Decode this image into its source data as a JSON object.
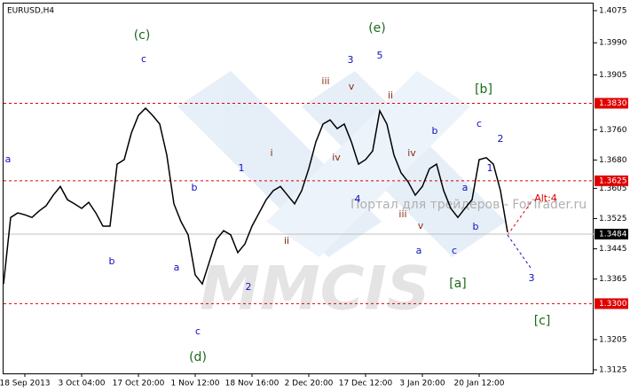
{
  "chart_data": {
    "type": "line",
    "title": "EURUSD,H4",
    "color": "#000000",
    "categories": [
      null,
      null,
      null,
      "18 Sep 2013",
      null,
      null,
      null,
      null,
      null,
      null,
      null,
      "3 Oct 04:00",
      null,
      null,
      null,
      null,
      null,
      null,
      null,
      "17 Oct 20:00",
      null,
      null,
      null,
      null,
      null,
      null,
      null,
      "1 Nov 12:00",
      null,
      null,
      null,
      null,
      null,
      null,
      null,
      "18 Nov 16:00",
      null,
      null,
      null,
      null,
      null,
      null,
      null,
      "2 Dec 20:00",
      null,
      null,
      null,
      null,
      null,
      null,
      null,
      "17 Dec 12:00",
      null,
      null,
      null,
      null,
      null,
      null,
      null,
      "3 Jan 20:00",
      null,
      null,
      null,
      null,
      null,
      null,
      null,
      "20 Jan 12:00",
      null,
      null,
      null,
      null
    ],
    "values": [
      1.3352,
      1.3528,
      1.354,
      1.3535,
      1.3528,
      1.3545,
      1.3559,
      1.3587,
      1.361,
      1.3575,
      1.3564,
      1.3552,
      1.3568,
      1.354,
      1.3505,
      1.3505,
      1.3669,
      1.3681,
      1.3751,
      1.3798,
      1.3817,
      1.3798,
      1.3775,
      1.3693,
      1.3564,
      1.3517,
      1.3482,
      1.3376,
      1.3352,
      1.3411,
      1.347,
      1.3493,
      1.3482,
      1.3435,
      1.3458,
      1.3505,
      1.354,
      1.3575,
      1.3599,
      1.361,
      1.3587,
      1.3564,
      1.3599,
      1.3657,
      1.3728,
      1.3775,
      1.3786,
      1.3763,
      1.3775,
      1.3728,
      1.3669,
      1.3681,
      1.3704,
      1.381,
      1.3775,
      1.3693,
      1.3646,
      1.3622,
      1.3587,
      1.361,
      1.3657,
      1.3669,
      1.3599,
      1.3552,
      1.3528,
      1.3552,
      1.3575,
      1.3681,
      1.3686,
      1.3669,
      1.3599,
      1.3489
    ],
    "ylim": [
      1.3125,
      1.4075
    ],
    "yticks": [
      1.4075,
      {
        "value": 1.399,
        "label": "1.3990"
      },
      1.3905,
      {
        "value": 1.376,
        "label": "1.3760"
      },
      {
        "value": 1.368,
        "label": "1.3680"
      },
      1.3605,
      1.3525,
      1.3445,
      1.3365,
      1.3205,
      1.3125
    ],
    "hlines": [
      {
        "value": 1.383,
        "label": "1.3830",
        "color": "#e00000"
      },
      {
        "value": 1.3625,
        "label": "1.3625",
        "color": "#e00000"
      },
      {
        "value": 1.33,
        "label": "1.3300",
        "color": "#e00000"
      },
      {
        "value": 1.3484,
        "label": "1.3484",
        "color": "#c0c0c0"
      }
    ],
    "annotations": [
      {
        "text": "(c)",
        "color": "#1a6b1a"
      },
      {
        "text": "c",
        "color": "#1010c0"
      },
      {
        "text": "a",
        "color": "#1010c0"
      },
      {
        "text": "b",
        "color": "#1010c0"
      },
      {
        "text": "b",
        "color": "#1010c0"
      },
      {
        "text": "a",
        "color": "#1010c0"
      },
      {
        "text": "c",
        "color": "#1010c0"
      },
      {
        "text": "(d)",
        "color": "#1a6b1a"
      },
      {
        "text": "1",
        "color": "#1010c0"
      },
      {
        "text": "2",
        "color": "#1010c0"
      },
      {
        "text": "i",
        "color": "#8b2a10"
      },
      {
        "text": "ii",
        "color": "#8b2a10"
      },
      {
        "text": "iii",
        "color": "#8b2a10"
      },
      {
        "text": "iv",
        "color": "#8b2a10"
      },
      {
        "text": "v",
        "color": "#8b2a10"
      },
      {
        "text": "3",
        "color": "#1010c0"
      },
      {
        "text": "4",
        "color": "#1010c0"
      },
      {
        "text": "5",
        "color": "#1010c0"
      },
      {
        "text": "(e)",
        "color": "#1a6b1a"
      },
      {
        "text": "ii",
        "color": "#8b2a10"
      },
      {
        "text": "iii",
        "color": "#8b2a10"
      },
      {
        "text": "iv",
        "color": "#8b2a10"
      },
      {
        "text": "v",
        "color": "#8b2a10"
      },
      {
        "text": "b",
        "color": "#1010c0"
      },
      {
        "text": "a",
        "color": "#1010c0"
      },
      {
        "text": "c",
        "color": "#1010c0"
      },
      {
        "text": "a",
        "color": "#1010c0"
      },
      {
        "text": "b",
        "color": "#1010c0"
      },
      {
        "text": "c",
        "color": "#1010c0"
      },
      {
        "text": "1",
        "color": "#1010c0"
      },
      {
        "text": "2",
        "color": "#1010c0"
      },
      {
        "text": "[b]",
        "color": "#1a6b1a"
      },
      {
        "text": "[a]",
        "color": "#1a6b1a"
      },
      {
        "text": "3",
        "color": "#1010c0"
      },
      {
        "text": "[c]",
        "color": "#1a6b1a"
      },
      {
        "text": "Alt:4",
        "color": "#e00000"
      }
    ],
    "watermark": "MMCIS",
    "site": "Портал для трейдеров - ForTrader.ru"
  }
}
